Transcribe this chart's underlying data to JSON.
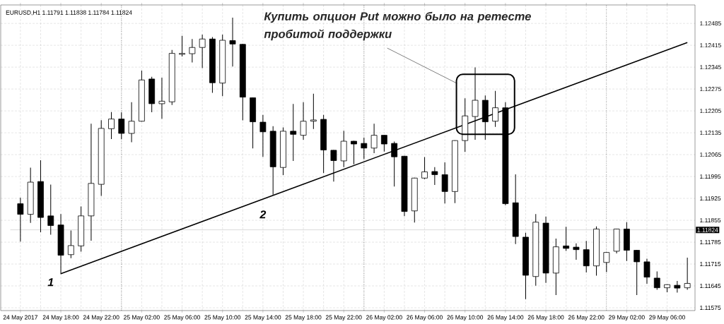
{
  "chart_data": {
    "type": "candlestick",
    "title": "EURUSD,H1  1.11791 1.11838 1.11784 1.11824",
    "categories": [
      "24 May 2017",
      null,
      null,
      null,
      "24 May 18:00",
      null,
      null,
      null,
      "24 May 22:00",
      null,
      null,
      null,
      "25 May 02:00",
      null,
      null,
      null,
      "25 May 06:00",
      null,
      null,
      null,
      "25 May 10:00",
      null,
      null,
      null,
      "25 May 14:00",
      null,
      null,
      null,
      "25 May 18:00",
      null,
      null,
      null,
      "25 May 22:00",
      null,
      null,
      null,
      "26 May 02:00",
      null,
      null,
      null,
      "26 May 06:00",
      null,
      null,
      null,
      "26 May 10:00",
      null,
      null,
      null,
      "26 May 14:00",
      null,
      null,
      null,
      "26 May 18:00",
      null,
      null,
      null,
      "26 May 22:00",
      null,
      null,
      null,
      "29 May 02:00",
      null,
      null,
      null,
      "29 May 06:00",
      null,
      null
    ],
    "ohlc": [
      [
        1.11908,
        1.11926,
        1.11788,
        1.11874
      ],
      [
        1.11874,
        1.12022,
        1.11848,
        1.11977
      ],
      [
        1.11979,
        1.12046,
        1.11818,
        1.11864
      ],
      [
        1.11869,
        1.11968,
        1.1181,
        1.11838
      ],
      [
        1.1184,
        1.11874,
        1.11684,
        1.11743
      ],
      [
        1.11745,
        1.11821,
        1.11735,
        1.11774
      ],
      [
        1.11773,
        1.11898,
        1.11756,
        1.11869
      ],
      [
        1.11869,
        1.12163,
        1.11791,
        1.11973
      ],
      [
        1.1197,
        1.12174,
        1.11934,
        1.12149
      ],
      [
        1.12148,
        1.122,
        1.12116,
        1.12179
      ],
      [
        1.12179,
        1.12199,
        1.12116,
        1.12133
      ],
      [
        1.12133,
        1.12232,
        1.12106,
        1.12172
      ],
      [
        1.12172,
        1.12333,
        1.12172,
        1.12304
      ],
      [
        1.12307,
        1.12313,
        1.12202,
        1.12228
      ],
      [
        1.12228,
        1.1231,
        1.12181,
        1.12236
      ],
      [
        1.12234,
        1.12399,
        1.12225,
        1.12389
      ],
      [
        1.12386,
        1.12444,
        1.1238,
        1.12389
      ],
      [
        1.12388,
        1.12434,
        1.12361,
        1.12408
      ],
      [
        1.12408,
        1.12448,
        1.12343,
        1.12435
      ],
      [
        1.12435,
        1.1244,
        1.12264,
        1.12295
      ],
      [
        1.12294,
        1.12448,
        1.12253,
        1.12431
      ],
      [
        1.1243,
        1.12502,
        1.12348,
        1.12419
      ],
      [
        1.12418,
        1.12418,
        1.12176,
        1.12249
      ],
      [
        1.12247,
        1.12247,
        1.12086,
        1.1217
      ],
      [
        1.12169,
        1.12191,
        1.12059,
        1.12138
      ],
      [
        1.1214,
        1.12155,
        1.11938,
        1.12026
      ],
      [
        1.12024,
        1.12151,
        1.12001,
        1.1214
      ],
      [
        1.1214,
        1.12226,
        1.12046,
        1.1213
      ],
      [
        1.12127,
        1.12232,
        1.12114,
        1.12172
      ],
      [
        1.12172,
        1.12259,
        1.12148,
        1.12176
      ],
      [
        1.12178,
        1.12191,
        1.12007,
        1.1208
      ],
      [
        1.12079,
        1.12079,
        1.1198,
        1.12046
      ],
      [
        1.12045,
        1.1214,
        1.12026,
        1.12108
      ],
      [
        1.12108,
        1.12108,
        1.12035,
        1.12099
      ],
      [
        1.12101,
        1.12118,
        1.12052,
        1.12086
      ],
      [
        1.12086,
        1.12163,
        1.12071,
        1.12127
      ],
      [
        1.12127,
        1.12127,
        1.12076,
        1.12099
      ],
      [
        1.12101,
        1.12106,
        1.11964,
        1.12058
      ],
      [
        1.1206,
        1.1206,
        1.11869,
        1.11883
      ],
      [
        1.11885,
        1.1199,
        1.11849,
        1.1199
      ],
      [
        1.1199,
        1.12056,
        1.11988,
        1.1201
      ],
      [
        1.12011,
        1.12024,
        1.11969,
        1.12001
      ],
      [
        1.12001,
        1.12039,
        1.1191,
        1.11947
      ],
      [
        1.11947,
        1.1211,
        1.11911,
        1.1211
      ],
      [
        1.1211,
        1.12244,
        1.12075,
        1.12189
      ],
      [
        1.12187,
        1.12343,
        1.12114,
        1.12239
      ],
      [
        1.12239,
        1.12253,
        1.12114,
        1.1217
      ],
      [
        1.12172,
        1.12268,
        1.12155,
        1.12215
      ],
      [
        1.12215,
        1.12232,
        1.11904,
        1.11908
      ],
      [
        1.11911,
        1.12001,
        1.1178,
        1.11803
      ],
      [
        1.11801,
        1.11814,
        1.11604,
        1.11679
      ],
      [
        1.11675,
        1.11874,
        1.11647,
        1.11849
      ],
      [
        1.11846,
        1.11866,
        1.11656,
        1.11686
      ],
      [
        1.11686,
        1.11795,
        1.11617,
        1.1177
      ],
      [
        1.11773,
        1.11833,
        1.11758,
        1.11765
      ],
      [
        1.11769,
        1.1178,
        1.1173,
        1.11761
      ],
      [
        1.11761,
        1.11788,
        1.11689,
        1.11709
      ],
      [
        1.11709,
        1.11834,
        1.11679,
        1.11827
      ],
      [
        1.1172,
        1.11752,
        1.1169,
        1.11752
      ],
      [
        1.11756,
        1.11827,
        1.1175,
        1.11827
      ],
      [
        1.11827,
        1.11848,
        1.11726,
        1.11759
      ],
      [
        1.11759,
        1.11759,
        1.11617,
        1.11722
      ],
      [
        1.11722,
        1.11731,
        1.11653,
        1.11673
      ],
      [
        1.1167,
        1.1169,
        1.11634,
        1.11639
      ],
      [
        1.11639,
        1.11649,
        1.11626,
        1.11649
      ],
      [
        1.11647,
        1.1166,
        1.11625,
        1.11638
      ],
      [
        1.11639,
        1.11734,
        1.11634,
        1.11653
      ]
    ],
    "series": [
      {
        "type": "line",
        "color": "#000000",
        "values": [
          null,
          null,
          null,
          null,
          1.11684,
          null,
          null,
          null,
          null,
          null,
          null,
          null,
          null,
          null,
          null,
          null,
          null,
          null,
          null,
          null,
          null,
          null,
          null,
          null,
          null,
          null,
          null,
          null,
          null,
          null,
          null,
          null,
          null,
          null,
          null,
          null,
          null,
          null,
          null,
          null,
          null,
          null,
          null,
          null,
          null,
          null,
          null,
          null,
          null,
          null,
          null,
          null,
          null,
          null,
          null,
          null,
          null,
          null,
          null,
          null,
          null,
          null,
          null,
          null,
          null,
          null,
          1.12424
        ]
      }
    ],
    "ylim": [
      1.11566,
      1.12544
    ],
    "yticks": [
      1.11575,
      1.11645,
      1.11715,
      1.11785,
      1.11855,
      1.11925,
      1.11995,
      1.12065,
      1.12135,
      1.12205,
      1.12275,
      1.12345,
      1.12415,
      1.12485
    ],
    "grid": true,
    "ref_lines": [
      {
        "axis": "y",
        "value": 1.11824,
        "label": "1.11824",
        "color": "#b4b4b4"
      }
    ],
    "annotations": [
      "Купить опцион Put можно было на ретесте пробитой поддержки",
      "1",
      "2"
    ]
  }
}
